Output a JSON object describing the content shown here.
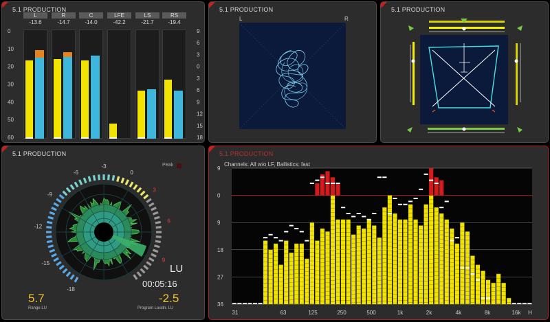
{
  "panels": {
    "bargraph": {
      "title": "5.1 PRODUCTION"
    },
    "vector": {
      "title": "5.1 PRODUCTION",
      "left_label": "L",
      "right_label": "R"
    },
    "surround": {
      "title": "5.1 PRODUCTION"
    },
    "loudness": {
      "title": "5.1 PRODUCTION",
      "peak_label": "Peak",
      "unit": "LU",
      "time": "00:05:16",
      "range_value": "5.7",
      "range_label": "Range LU",
      "program_value": "-2.5",
      "program_label": "Program Loudn. LU",
      "scale_labels": [
        "-18",
        "-15",
        "-12",
        "-9",
        "-6",
        "-3",
        "0",
        "3",
        "6",
        "9"
      ]
    },
    "spectrum": {
      "title": "5.1 PRODUCTION",
      "info": "Channels: All w/o LF, Ballistics: fast",
      "y_labels": [
        "9",
        "0",
        "9",
        "18",
        "27",
        "36"
      ],
      "x_labels": [
        "31",
        "63",
        "125",
        "250",
        "500",
        "1k",
        "2k",
        "4k",
        "8k",
        "16k",
        "H"
      ]
    }
  },
  "channels": [
    {
      "name": "L",
      "value": "-13.6",
      "level_y": 0.72,
      "level_b": 0.74,
      "peak_b": 0.81
    },
    {
      "name": "R",
      "value": "-14.7",
      "level_y": 0.73,
      "level_b": 0.75,
      "peak_b": 0.79
    },
    {
      "name": "C",
      "value": "-14.0",
      "level_y": 0.72,
      "level_b": 0.76,
      "peak_b": 0.0
    },
    {
      "name": "LFE",
      "value": "-42.2",
      "level_y": 0.14,
      "level_b": 0.0,
      "peak_b": 0.0
    },
    {
      "name": "LS",
      "value": "-21.7",
      "level_y": 0.44,
      "level_b": 0.45,
      "peak_b": 0.0
    },
    {
      "name": "RS",
      "value": "-19.4",
      "level_y": 0.54,
      "level_b": 0.44,
      "peak_b": 0.0
    }
  ],
  "bargraph_scale_left": [
    "0",
    "10",
    "20",
    "30",
    "40",
    "50",
    "60"
  ],
  "bargraph_scale_right": [
    "9",
    "6",
    "3",
    "0",
    "3",
    "6",
    "9",
    "12",
    "15",
    "18"
  ],
  "spectrum_data": {
    "bands": 58,
    "levels": [
      -36,
      -36,
      -36,
      -36,
      -36,
      -36,
      -15,
      -18,
      -16,
      -23,
      -15,
      -19,
      -16,
      -16,
      -21,
      -9,
      -15,
      -11,
      -12,
      0,
      -8,
      -8,
      -8,
      -13,
      -10,
      -11,
      -8,
      -10,
      -14,
      -4,
      0,
      -6,
      -8,
      -8,
      -3,
      -8,
      -10,
      -3,
      0,
      -4,
      -6,
      -8,
      -11,
      -16,
      -9,
      -12,
      -20,
      -23,
      -25,
      -28,
      -29,
      -26,
      -29,
      -34,
      -36,
      -36,
      -36,
      -36
    ],
    "peaks": [
      -36,
      -36,
      -36,
      -36,
      -36,
      -36,
      -14,
      -13,
      -14,
      -15,
      -12,
      -10,
      -11,
      -12,
      -15,
      4,
      5,
      6,
      4,
      4,
      4,
      -4,
      -6,
      -7,
      -6,
      -7,
      -8,
      -6,
      6,
      6,
      -6,
      -1,
      -3,
      -3,
      -2,
      -1,
      2,
      7,
      5,
      4,
      -4,
      -2,
      -15,
      -14,
      -24,
      -24,
      -26,
      -28,
      -34,
      -34,
      -36,
      -36,
      -36,
      -36,
      -36,
      -36,
      -36,
      -36
    ],
    "overs": [
      0,
      0,
      0,
      0,
      0,
      0,
      0,
      0,
      0,
      0,
      0,
      0,
      0,
      0,
      0,
      0,
      4,
      7,
      8,
      6,
      4,
      0,
      0,
      0,
      0,
      0,
      0,
      0,
      0,
      0,
      0,
      0,
      0,
      0,
      0,
      0,
      0,
      0,
      9,
      6,
      5,
      0,
      0,
      0,
      0,
      0,
      0,
      0,
      0,
      0,
      0,
      0,
      0,
      0,
      0,
      0,
      0,
      0
    ]
  },
  "colors": {
    "accent_red": "#c62020",
    "yellow": "#f2e400",
    "blue": "#3fb6dc",
    "orange": "#e5841e",
    "green": "#7acc44"
  },
  "icons": {
    "corner": "red-corner-flag-icon"
  }
}
